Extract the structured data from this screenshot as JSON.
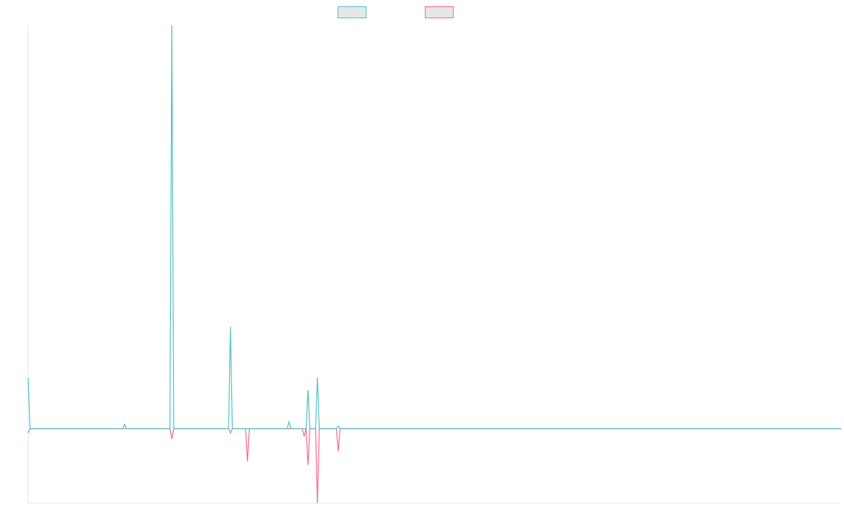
{
  "chart_data": {
    "type": "line",
    "title": "",
    "xlabel": "",
    "ylabel": "",
    "x_count": 431,
    "ylim": [
      -0.43,
      2.3
    ],
    "grid": false,
    "legend_position": "top",
    "series": [
      {
        "name": "",
        "color": "#4bc0c0",
        "fill": "#e6e6e6",
        "points": [
          [
            0,
            0.29
          ],
          [
            1,
            0
          ],
          [
            50,
            0
          ],
          [
            51,
            0.025
          ],
          [
            52,
            0
          ],
          [
            75,
            0
          ],
          [
            76,
            2.3
          ],
          [
            77,
            0
          ],
          [
            106,
            0
          ],
          [
            107,
            0.58
          ],
          [
            108,
            0
          ],
          [
            137,
            0
          ],
          [
            138,
            0.04
          ],
          [
            139,
            0
          ],
          [
            147,
            0
          ],
          [
            148,
            0.22
          ],
          [
            149,
            0
          ],
          [
            152,
            0
          ],
          [
            153,
            0.29
          ],
          [
            154,
            0
          ],
          [
            163,
            0
          ],
          [
            164,
            0.015
          ],
          [
            165,
            0
          ],
          [
            430,
            0
          ]
        ]
      },
      {
        "name": "",
        "color": "#ff6384",
        "fill": "#e6e6e6",
        "points": [
          [
            0,
            -0.025
          ],
          [
            1,
            0
          ],
          [
            75,
            0
          ],
          [
            76,
            -0.06
          ],
          [
            77,
            0
          ],
          [
            106,
            0
          ],
          [
            107,
            -0.025
          ],
          [
            108,
            0
          ],
          [
            115,
            0
          ],
          [
            116,
            -0.19
          ],
          [
            117,
            0
          ],
          [
            145,
            0
          ],
          [
            146,
            -0.045
          ],
          [
            147,
            0
          ],
          [
            148,
            -0.21
          ],
          [
            149,
            0
          ],
          [
            152,
            0
          ],
          [
            153,
            -0.43
          ],
          [
            154,
            0
          ],
          [
            163,
            0
          ],
          [
            164,
            -0.13
          ],
          [
            165,
            0
          ],
          [
            430,
            0
          ]
        ]
      }
    ]
  }
}
